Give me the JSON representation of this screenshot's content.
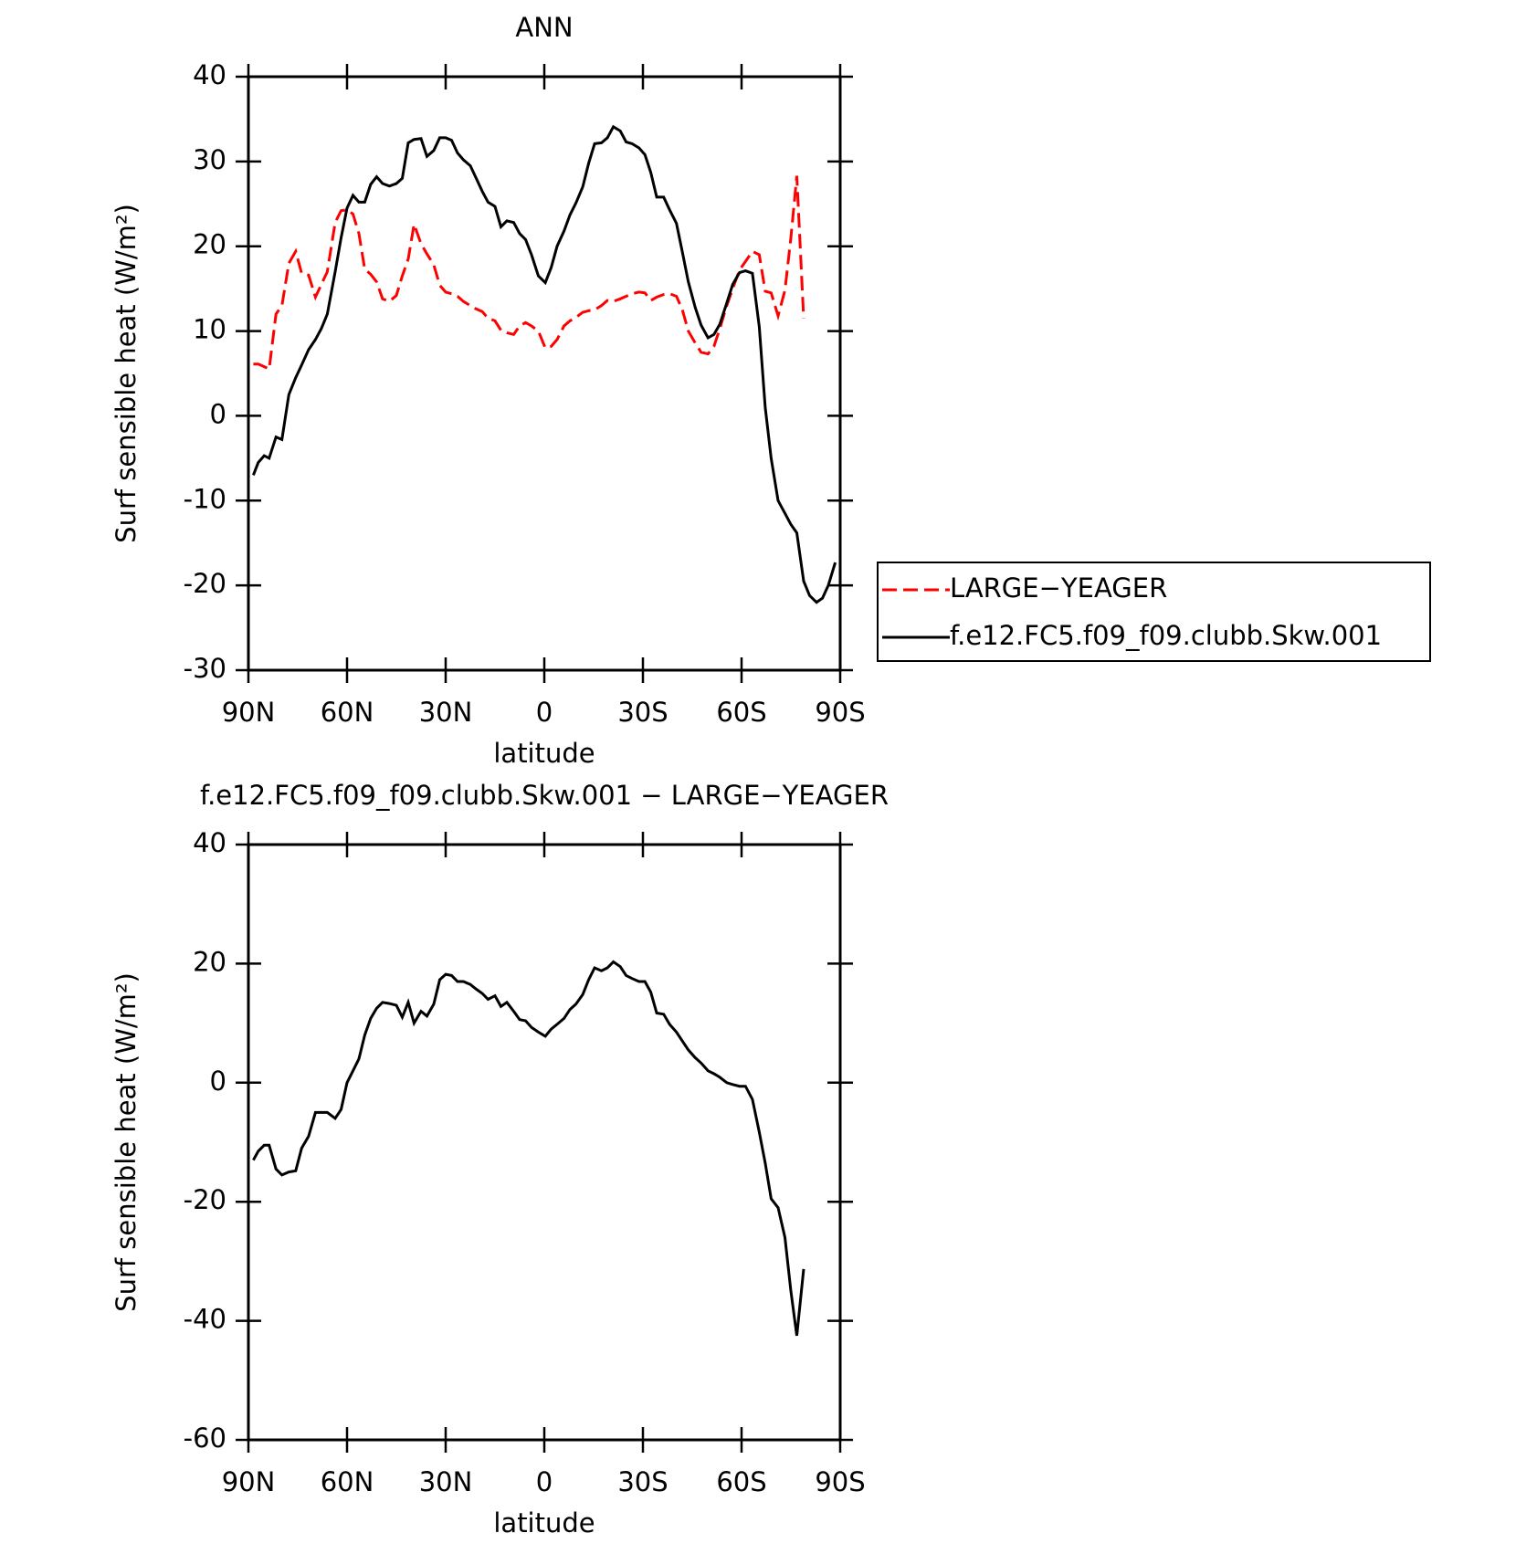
{
  "chart_data": [
    {
      "type": "line",
      "title": "ANN",
      "xlabel": "latitude",
      "ylabel": "Surf sensible heat (W/m²)",
      "x": [
        88.5,
        87.0,
        85.2,
        83.7,
        81.6,
        79.8,
        77.7,
        75.6,
        73.8,
        71.7,
        69.6,
        67.8,
        66.0,
        63.6,
        61.8,
        60.0,
        58.2,
        56.4,
        54.6,
        52.8,
        51.0,
        49.2,
        47.1,
        45.0,
        43.2,
        41.4,
        39.6,
        37.5,
        35.7,
        33.6,
        31.8,
        30.0,
        28.2,
        26.4,
        24.6,
        22.5,
        20.7,
        18.9,
        17.1,
        15.0,
        13.2,
        11.4,
        9.3,
        7.5,
        5.7,
        3.9,
        1.8,
        -0.3,
        -2.1,
        -3.9,
        -6.0,
        -7.8,
        -9.6,
        -11.7,
        -13.5,
        -15.3,
        -17.4,
        -19.2,
        -21.0,
        -23.1,
        -24.9,
        -26.7,
        -28.8,
        -30.6,
        -32.4,
        -34.2,
        -36.3,
        -38.1,
        -40.2,
        -42.0,
        -43.8,
        -45.9,
        -47.7,
        -49.8,
        -51.6,
        -53.4,
        -55.5,
        -57.3,
        -59.4,
        -61.2,
        -63.3,
        -65.4,
        -67.2,
        -69.0,
        -71.1,
        -73.2,
        -75.0,
        -76.8,
        -78.9,
        -80.7,
        -82.8,
        -84.6,
        -86.4,
        -88.5
      ],
      "xlim": [
        90,
        -90
      ],
      "xticks": [
        {
          "value": 90,
          "label": "90N"
        },
        {
          "value": 60,
          "label": "60N"
        },
        {
          "value": 30,
          "label": "30N"
        },
        0,
        {
          "value": -30,
          "label": "30S"
        },
        {
          "value": -60,
          "label": "60S"
        },
        {
          "value": -90,
          "label": "90S"
        }
      ],
      "ylim": [
        -30,
        40
      ],
      "yticks": [
        -30,
        -20,
        -10,
        0,
        10,
        20,
        30,
        40
      ],
      "legend": "right",
      "series": [
        {
          "name": "LARGE−YEAGER",
          "color": "#ff0000",
          "dashed": true,
          "values": [
            6.1,
            6.1,
            5.8,
            5.5,
            12,
            13,
            18,
            19.4,
            16.8,
            16.6,
            14,
            15.5,
            17,
            22.8,
            24.2,
            24.3,
            23.8,
            21.5,
            17.3,
            16.7,
            15.8,
            13.8,
            13.5,
            14.2,
            16.5,
            18.5,
            22.6,
            20.3,
            19.1,
            17.8,
            15.4,
            14.6,
            14.4,
            14.1,
            13.5,
            13,
            12.6,
            12.3,
            11.5,
            11.2,
            10.1,
            9.8,
            9.6,
            10.6,
            11,
            10.6,
            10,
            8,
            8.2,
            9,
            10.6,
            11.2,
            11.6,
            12.2,
            12.4,
            12.5,
            13,
            13.6,
            13.5,
            13.8,
            14.1,
            14.4,
            14.6,
            14.5,
            13.6,
            14,
            14.3,
            14.4,
            14.1,
            12.5,
            10,
            8.6,
            7.5,
            7.3,
            8.2,
            10.3,
            13,
            15,
            17.2,
            18.2,
            19.4,
            19,
            14.7,
            14.5,
            11.8,
            14.8,
            21,
            28.3,
            11.5,
            null,
            null,
            null,
            null,
            null
          ]
        },
        {
          "name": "f.e12.FC5.f09_f09.clubb.Skw.001",
          "color": "#000000",
          "dashed": false,
          "values": [
            -7,
            -5.5,
            -4.7,
            -5,
            -2.5,
            -2.8,
            2.5,
            4.5,
            6,
            7.8,
            9,
            10.3,
            12,
            17,
            21,
            24.5,
            26,
            25.2,
            25.2,
            27.3,
            28.2,
            27.4,
            27.1,
            27.4,
            28,
            32.2,
            32.6,
            32.7,
            30.6,
            31.3,
            32.8,
            32.8,
            32.5,
            31,
            30.2,
            29.5,
            28,
            26.5,
            25.2,
            24.7,
            22.3,
            23,
            22.8,
            21.5,
            20.8,
            19,
            16.5,
            15.7,
            17.5,
            20,
            21.8,
            23.7,
            25.1,
            27,
            29.8,
            32.1,
            32.2,
            32.8,
            34.1,
            33.6,
            32.3,
            32.1,
            31.6,
            30.8,
            28.7,
            25.8,
            25.8,
            24.3,
            22.7,
            19.3,
            15.8,
            12.8,
            10.7,
            9.2,
            9.6,
            10.8,
            13.3,
            15.5,
            16.9,
            17.1,
            16.8,
            10.5,
            1,
            -5,
            -10,
            -11.5,
            -12.8,
            -13.8,
            -19.5,
            -21.2,
            -22,
            -21.5,
            -20,
            -17.3
          ]
        }
      ]
    },
    {
      "type": "line",
      "title": "f.e12.FC5.f09_f09.clubb.Skw.001 − LARGE−YEAGER",
      "xlabel": "latitude",
      "ylabel": "Surf sensible heat (W/m²)",
      "x": [
        88.5,
        87.0,
        85.2,
        83.7,
        81.6,
        79.8,
        77.7,
        75.6,
        73.8,
        71.7,
        69.6,
        67.8,
        66.0,
        63.6,
        61.8,
        60.0,
        58.2,
        56.4,
        54.6,
        52.8,
        51.0,
        49.2,
        47.1,
        45.0,
        43.2,
        41.4,
        39.6,
        37.5,
        35.7,
        33.6,
        31.8,
        30.0,
        28.2,
        26.4,
        24.6,
        22.5,
        20.7,
        18.9,
        17.1,
        15.0,
        13.2,
        11.4,
        9.3,
        7.5,
        5.7,
        3.9,
        1.8,
        -0.3,
        -2.1,
        -3.9,
        -6.0,
        -7.8,
        -9.6,
        -11.7,
        -13.5,
        -15.3,
        -17.4,
        -19.2,
        -21.0,
        -23.1,
        -24.9,
        -26.7,
        -28.8,
        -30.6,
        -32.4,
        -34.2,
        -36.3,
        -38.1,
        -40.2,
        -42.0,
        -43.8,
        -45.9,
        -47.7,
        -49.8,
        -51.6,
        -53.4,
        -55.5,
        -57.3,
        -59.4,
        -61.2,
        -63.3,
        -65.4,
        -67.2,
        -69.0,
        -71.1,
        -73.2,
        -75.0,
        -76.8,
        -78.9,
        -80.7,
        -82.8,
        -84.6,
        -86.4,
        -88.5
      ],
      "xlim": [
        90,
        -90
      ],
      "xticks": [
        {
          "value": 90,
          "label": "90N"
        },
        {
          "value": 60,
          "label": "60N"
        },
        {
          "value": 30,
          "label": "30N"
        },
        0,
        {
          "value": -30,
          "label": "30S"
        },
        {
          "value": -60,
          "label": "60S"
        },
        {
          "value": -90,
          "label": "90S"
        }
      ],
      "ylim": [
        -60,
        40
      ],
      "yticks": [
        -60,
        -40,
        -20,
        0,
        20,
        40
      ],
      "series": [
        {
          "color": "#000000",
          "dashed": false,
          "values": [
            -13,
            -11.5,
            -10.5,
            -10.5,
            -14.5,
            -15.5,
            -15,
            -14.8,
            -11,
            -9,
            -5,
            -5,
            -5,
            -6,
            -4.5,
            0,
            2,
            4,
            8,
            10.8,
            12.5,
            13.5,
            13.3,
            13,
            11,
            13.5,
            10,
            12,
            11.2,
            13.2,
            17.3,
            18.2,
            18,
            17,
            17,
            16.5,
            15.7,
            15,
            14,
            14.6,
            12.8,
            13.5,
            12,
            10.6,
            10.4,
            9.3,
            8.5,
            7.8,
            9,
            9.8,
            10.8,
            12.3,
            13.2,
            14.8,
            17.3,
            19.3,
            18.8,
            19.3,
            20.3,
            19.5,
            18,
            17.5,
            17,
            17,
            15.2,
            11.7,
            11.5,
            9.8,
            8.5,
            7,
            5.5,
            4.2,
            3.3,
            2,
            1.5,
            0.9,
            0,
            -0.3,
            -0.6,
            -0.6,
            -2.8,
            -8.3,
            -13.5,
            -19.5,
            -21,
            -26,
            -35,
            -42.5,
            -31.3,
            null,
            null,
            null,
            null,
            null
          ]
        }
      ]
    }
  ]
}
